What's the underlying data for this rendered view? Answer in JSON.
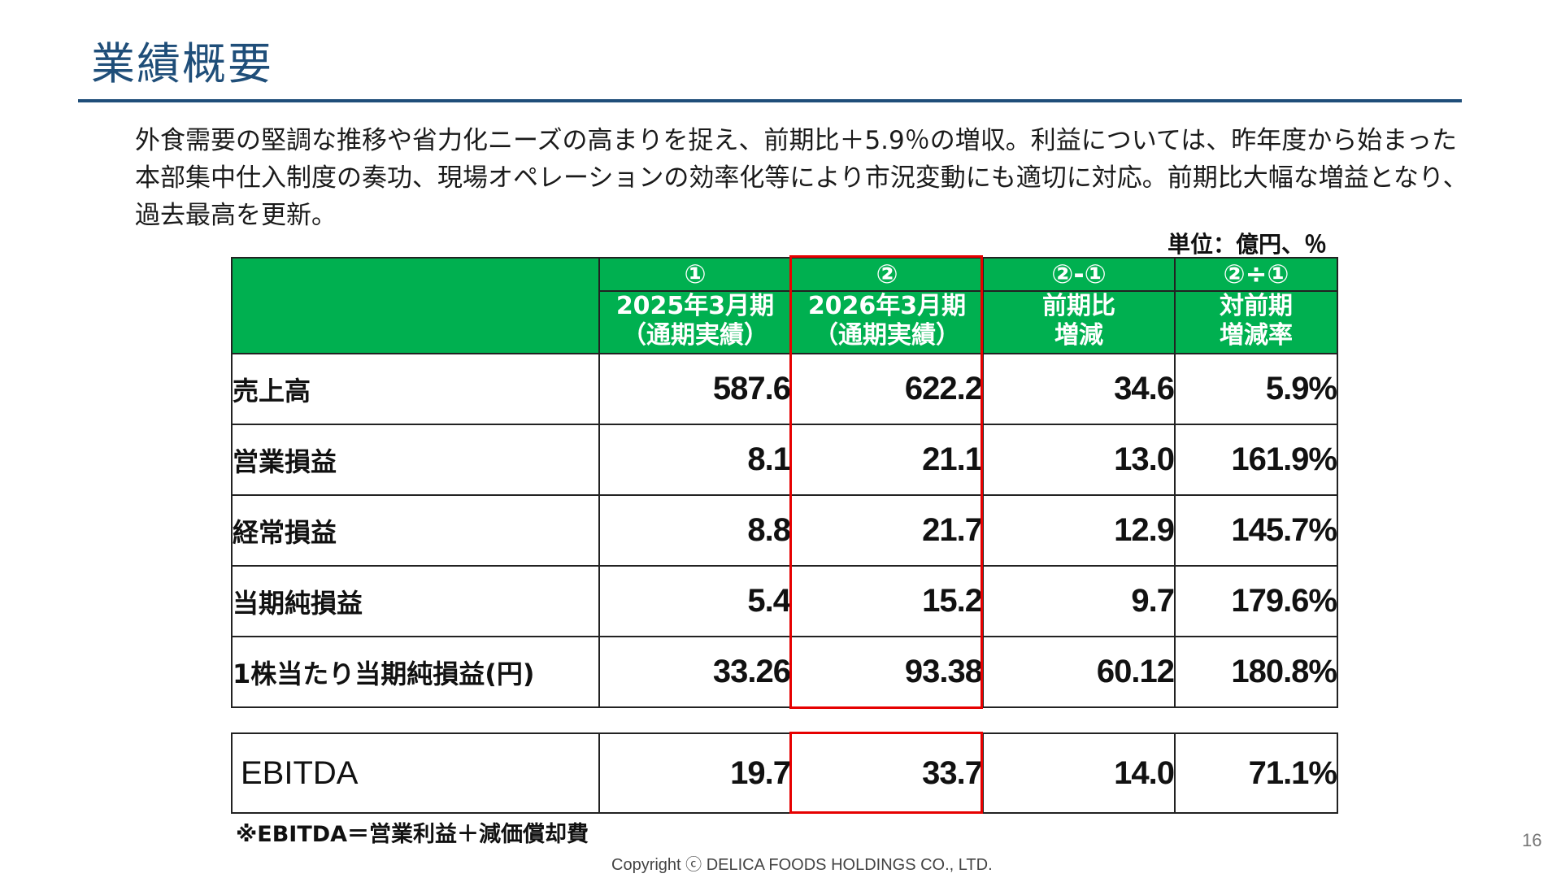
{
  "title": "業績概要",
  "summary": "外食需要の堅調な推移や省力化ニーズの高まりを捉え、前期比＋5.9％の増収。利益については、昨年度から始まった本部集中仕入制度の奏功、現場オペレーションの効率化等により市況変動にも適切に対応。前期比大幅な増益となり、過去最高を更新。",
  "unit": "単位：億円、％",
  "table": {
    "columns": [
      {
        "mark": "①",
        "line1": "2025年3月期",
        "line2": "（通期実績）"
      },
      {
        "mark": "②",
        "line1": "2026年3月期",
        "line2": "（通期実績）"
      },
      {
        "mark": "②-①",
        "line1": "前期比",
        "line2": "増減"
      },
      {
        "mark": "②÷①",
        "line1": "対前期",
        "line2": "増減率"
      }
    ],
    "rows": [
      {
        "label": "売上高",
        "values": [
          "587.6",
          "622.2",
          "34.6",
          "5.9%"
        ]
      },
      {
        "label": "営業損益",
        "values": [
          "8.1",
          "21.1",
          "13.0",
          "161.9%"
        ]
      },
      {
        "label": "経常損益",
        "values": [
          "8.8",
          "21.7",
          "12.9",
          "145.7%"
        ]
      },
      {
        "label": "当期純損益",
        "values": [
          "5.4",
          "15.2",
          "9.7",
          "179.6%"
        ]
      },
      {
        "label": "1株当たり当期純損益(円)",
        "values": [
          "33.26",
          "93.38",
          "60.12",
          "180.8%"
        ]
      }
    ]
  },
  "ebitda": {
    "label": "EBITDA",
    "values": [
      "19.7",
      "33.7",
      "14.0",
      "71.1%"
    ]
  },
  "note": "※EBITDA＝営業利益＋減価償却費",
  "copyright": "Copyright ⓒ DELICA FOODS HOLDINGS CO., LTD.",
  "page_number": "16",
  "colors": {
    "title": "#1f4e79",
    "header_bg": "#00b050",
    "highlight": "#e60000"
  }
}
